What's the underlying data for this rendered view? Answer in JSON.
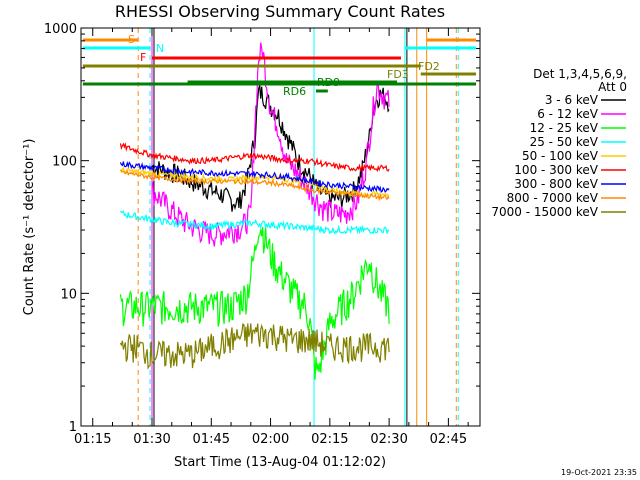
{
  "chart_data": {
    "type": "line",
    "title": "RHESSI Observing Summary Count Rates",
    "xlabel": "Start Time (13-Aug-04 01:12:02)",
    "ylabel": "Count Rate (s⁻¹ detector⁻¹)",
    "yscale": "log",
    "ylim": [
      1,
      1000
    ],
    "xlim": [
      72.03,
      173
    ],
    "x_units": "minutes after 00:00 UT",
    "x_ticks": [
      {
        "value": 75,
        "label": "01:15"
      },
      {
        "value": 90,
        "label": "01:30"
      },
      {
        "value": 105,
        "label": "01:45"
      },
      {
        "value": 120,
        "label": "02:00"
      },
      {
        "value": 135,
        "label": "02:15"
      },
      {
        "value": 150,
        "label": "02:30"
      },
      {
        "value": 165,
        "label": "02:45"
      }
    ],
    "y_ticks": [
      {
        "value": 1,
        "label": "1"
      },
      {
        "value": 10,
        "label": "10"
      },
      {
        "value": 100,
        "label": "100"
      },
      {
        "value": 1000,
        "label": "1000"
      }
    ],
    "legend_title": [
      "Det 1,3,4,5,6,9,",
      "Att 0"
    ],
    "legend_position": "right",
    "series": [
      {
        "name": "3 - 6 keV",
        "color": "#000000",
        "x": [
          90,
          96,
          100,
          104,
          108,
          110,
          112,
          114,
          116,
          117,
          118,
          119,
          120,
          122,
          124,
          127,
          130,
          132,
          135,
          138,
          141,
          143,
          145,
          146,
          147,
          148,
          149,
          150
        ],
        "values": [
          90,
          80,
          70,
          62,
          55,
          50,
          48,
          70,
          150,
          330,
          320,
          290,
          260,
          220,
          160,
          100,
          75,
          60,
          52,
          52,
          60,
          80,
          150,
          250,
          300,
          320,
          300,
          280
        ]
      },
      {
        "name": "6 - 12 keV",
        "color": "#ff00ff",
        "x": [
          90,
          94,
          98,
          102,
          106,
          110,
          113,
          115,
          116,
          117,
          118,
          119,
          120,
          122,
          124,
          127,
          130,
          133,
          136,
          139,
          142,
          144,
          146,
          147,
          148,
          149,
          150
        ],
        "values": [
          60,
          45,
          35,
          30,
          28,
          30,
          32,
          40,
          180,
          600,
          700,
          400,
          250,
          180,
          100,
          80,
          60,
          45,
          40,
          40,
          50,
          90,
          250,
          380,
          330,
          300,
          280
        ]
      },
      {
        "name": "12 - 25 keV",
        "color": "#00ff00",
        "x": [
          82,
          88,
          94,
          100,
          106,
          110,
          114,
          116,
          117,
          118,
          120,
          122,
          126,
          129,
          130,
          131,
          132,
          135,
          138,
          141,
          143,
          145,
          146,
          148,
          150
        ],
        "values": [
          8,
          8,
          8,
          8,
          8,
          8,
          10,
          20,
          35,
          30,
          20,
          15,
          10,
          8,
          6,
          3,
          2.5,
          6,
          8,
          10,
          14,
          18,
          14,
          10,
          8
        ]
      },
      {
        "name": "25 - 50 keV",
        "color": "#00ffff",
        "x": [
          82,
          86,
          90,
          95,
          100,
          105,
          110,
          115,
          120,
          125,
          130,
          135,
          140,
          145,
          150
        ],
        "values": [
          40,
          38,
          36,
          34,
          33,
          32,
          33,
          34,
          33,
          32,
          31,
          30,
          30,
          30,
          30
        ]
      },
      {
        "name": "50 - 100 keV",
        "color": "#ffcc00",
        "x": [
          82,
          90,
          100,
          110,
          115,
          120,
          125,
          130,
          135,
          140,
          145,
          150
        ],
        "values": [
          85,
          80,
          75,
          72,
          75,
          75,
          72,
          68,
          60,
          57,
          56,
          56
        ]
      },
      {
        "name": "100 - 300 keV",
        "color": "#ff0000",
        "x": [
          82,
          90,
          100,
          105,
          110,
          115,
          120,
          125,
          128,
          130,
          135,
          140,
          145,
          150
        ],
        "values": [
          130,
          110,
          100,
          100,
          105,
          110,
          105,
          100,
          100,
          100,
          92,
          88,
          88,
          88
        ]
      },
      {
        "name": "300 - 800 keV",
        "color": "#0000ff",
        "x": [
          82,
          90,
          100,
          110,
          115,
          120,
          125,
          130,
          135,
          140,
          145,
          150
        ],
        "values": [
          95,
          88,
          82,
          80,
          80,
          78,
          75,
          70,
          66,
          64,
          62,
          60
        ]
      },
      {
        "name": "800 - 7000 keV",
        "color": "#ff8800",
        "x": [
          82,
          90,
          100,
          110,
          120,
          125,
          130,
          135,
          140,
          145,
          150
        ],
        "values": [
          82,
          75,
          70,
          70,
          68,
          65,
          60,
          58,
          56,
          54,
          52
        ]
      },
      {
        "name": "7000 - 15000 keV",
        "color": "#808000",
        "x": [
          82,
          86,
          90,
          95,
          100,
          105,
          110,
          115,
          120,
          125,
          130,
          135,
          140,
          145,
          150
        ],
        "values": [
          4,
          4,
          3.5,
          3.5,
          3.5,
          4,
          4.5,
          5,
          5,
          4.5,
          4.5,
          4,
          4,
          4,
          4
        ]
      }
    ],
    "state_bars": [
      {
        "label": "S",
        "color": "#ff8800",
        "segments": [
          [
            72.5,
            86.5
          ],
          [
            159.5,
            172
          ]
        ]
      },
      {
        "label": "N",
        "color": "#00ffff",
        "segments": [
          [
            72.5,
            89.5
          ],
          [
            154,
            172
          ]
        ]
      },
      {
        "label": "F",
        "color": "#ff0000",
        "segments": [
          [
            90,
            153
          ]
        ]
      },
      {
        "label": "FD2",
        "color": "#808000",
        "segments": [
          [
            72.5,
            158
          ]
        ]
      },
      {
        "label": "FD3",
        "color": "#808000",
        "segments": [
          [
            158,
            172
          ]
        ]
      },
      {
        "label": "RD9",
        "color": "#008000",
        "segments": [
          [
            99,
            152
          ]
        ]
      },
      {
        "label": "RD6",
        "color": "#008000",
        "segments": [
          [
            72.5,
            172
          ],
          [
            131.5,
            134.5
          ]
        ]
      }
    ]
  },
  "footer": {
    "date": "19-Oct-2021 23:35"
  }
}
